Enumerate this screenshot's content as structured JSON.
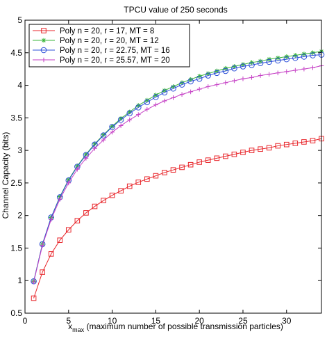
{
  "chart_data": {
    "type": "line",
    "title": "TPCU value of 250 seconds",
    "xlabel_main": "x",
    "xlabel_sub": "max",
    "xlabel_rest": " (maximum number of possible transmission particles)",
    "ylabel": "Channel Capacity (bits)",
    "xlim": [
      0,
      34
    ],
    "ylim": [
      0.5,
      5
    ],
    "xticks": [
      0,
      5,
      10,
      15,
      20,
      25,
      30
    ],
    "yticks": [
      0.5,
      1,
      1.5,
      2,
      2.5,
      3,
      3.5,
      4,
      4.5,
      5
    ],
    "ytick_labels": [
      "0.5",
      "1",
      "1.5",
      "2",
      "2.5",
      "3",
      "3.5",
      "4",
      "4.5",
      "5"
    ],
    "grid": false,
    "legend_position": "top-left",
    "x": [
      1,
      2,
      3,
      4,
      5,
      6,
      7,
      8,
      9,
      10,
      11,
      12,
      13,
      14,
      15,
      16,
      17,
      18,
      19,
      20,
      21,
      22,
      23,
      24,
      25,
      26,
      27,
      28,
      29,
      30,
      31,
      32,
      33,
      34
    ],
    "series": [
      {
        "name": "Poly n = 20, r = 17, MT = 8",
        "color": "#e8262b",
        "marker": "square",
        "values": [
          0.73,
          1.13,
          1.41,
          1.62,
          1.78,
          1.92,
          2.04,
          2.14,
          2.23,
          2.31,
          2.38,
          2.45,
          2.51,
          2.56,
          2.61,
          2.66,
          2.7,
          2.74,
          2.78,
          2.82,
          2.85,
          2.88,
          2.91,
          2.94,
          2.97,
          3.0,
          3.02,
          3.04,
          3.07,
          3.09,
          3.11,
          3.13,
          3.15,
          3.18
        ]
      },
      {
        "name": "Poly n = 20, r = 20, MT = 12",
        "color": "#3ab53a",
        "marker": "star",
        "values": [
          0.99,
          1.56,
          1.97,
          2.29,
          2.55,
          2.76,
          2.94,
          3.1,
          3.24,
          3.37,
          3.49,
          3.59,
          3.69,
          3.77,
          3.85,
          3.92,
          3.98,
          4.04,
          4.09,
          4.14,
          4.18,
          4.22,
          4.26,
          4.29,
          4.32,
          4.35,
          4.37,
          4.4,
          4.42,
          4.44,
          4.46,
          4.48,
          4.5,
          4.52
        ]
      },
      {
        "name": "Poly n = 20, r = 22.75, MT = 16",
        "color": "#2b4fd8",
        "marker": "circle",
        "values": [
          0.99,
          1.56,
          1.97,
          2.28,
          2.54,
          2.75,
          2.93,
          3.09,
          3.23,
          3.36,
          3.47,
          3.57,
          3.66,
          3.74,
          3.82,
          3.89,
          3.95,
          4.01,
          4.06,
          4.1,
          4.15,
          4.19,
          4.22,
          4.26,
          4.29,
          4.31,
          4.34,
          4.36,
          4.38,
          4.4,
          4.42,
          4.44,
          4.46,
          4.47
        ]
      },
      {
        "name": "Poly n = 20,  r = 25.57, MT = 20",
        "color": "#c642c6",
        "marker": "plus",
        "values": [
          0.98,
          1.54,
          1.94,
          2.25,
          2.5,
          2.71,
          2.88,
          3.03,
          3.16,
          3.28,
          3.38,
          3.47,
          3.55,
          3.63,
          3.7,
          3.76,
          3.81,
          3.86,
          3.9,
          3.94,
          3.98,
          4.01,
          4.04,
          4.07,
          4.1,
          4.12,
          4.15,
          4.17,
          4.19,
          4.21,
          4.23,
          4.25,
          4.27,
          4.3
        ]
      }
    ]
  }
}
